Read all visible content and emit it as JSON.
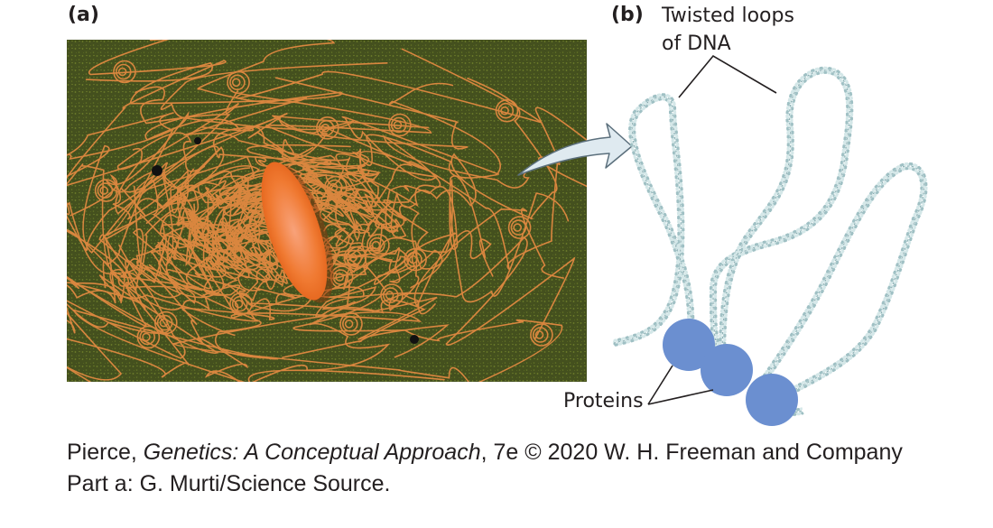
{
  "panels": {
    "a": {
      "label": "(a)"
    },
    "b": {
      "label": "(b)"
    }
  },
  "annotations": {
    "loops_line1": "Twisted loops",
    "loops_line2": "of DNA",
    "proteins": "Proteins"
  },
  "caption": {
    "author": "Pierce,",
    "book_title": "Genetics: A Conceptual Approach",
    "rest": ", 7e © 2020 W. H. Freeman and Company",
    "credit": "Part a: G. Murti/Science Source."
  },
  "colors": {
    "photo_background": "#3f4a1c",
    "bacterium": "#f07a32",
    "dna_fibers": "#d9863f",
    "dna_helix": "#b8d2d4",
    "protein": "#6b8fd0",
    "arrow_fill": "#dfeaf0",
    "arrow_stroke": "#5b6f7c"
  }
}
